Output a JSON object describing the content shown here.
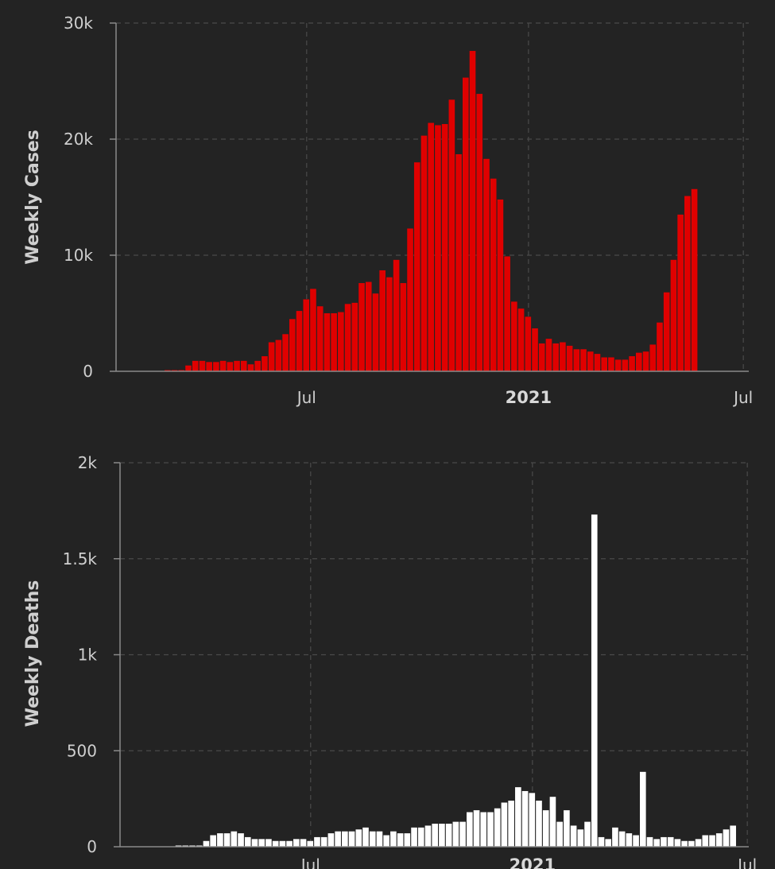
{
  "chart_data": [
    {
      "type": "bar",
      "ylabel": "Weekly Cases",
      "ylim": [
        0,
        30000
      ],
      "yticks": [
        "0",
        "10k",
        "20k",
        "30k"
      ],
      "ytick_values": [
        0,
        10000,
        20000,
        30000
      ],
      "xticks": [
        {
          "label": "Jul",
          "week_index": 27,
          "bold": false
        },
        {
          "label": "2021",
          "week_index": 59,
          "bold": true
        },
        {
          "label": "Jul",
          "week_index": 90,
          "bold": false
        }
      ],
      "grid": true,
      "bar_color": "#e00000",
      "x_unit": "weeks since first report",
      "values": [
        0,
        0,
        0,
        0,
        0,
        0,
        0,
        50,
        80,
        100,
        500,
        900,
        900,
        800,
        800,
        900,
        800,
        900,
        900,
        600,
        900,
        1300,
        2500,
        2700,
        3200,
        4500,
        5200,
        6200,
        7100,
        5600,
        5000,
        5000,
        5100,
        5800,
        5900,
        7600,
        7700,
        6700,
        8700,
        8100,
        9600,
        7600,
        12300,
        18000,
        20300,
        21400,
        21200,
        21300,
        23400,
        18700,
        25300,
        27600,
        23900,
        18300,
        16600,
        14800,
        9900,
        6000,
        5400,
        4700,
        3700,
        2400,
        2800,
        2400,
        2500,
        2200,
        1900,
        1900,
        1700,
        1500,
        1200,
        1200,
        1000,
        1000,
        1300,
        1600,
        1700,
        2300,
        4200,
        6800,
        9600,
        13500,
        15100,
        15700
      ]
    },
    {
      "type": "bar",
      "ylabel": "Weekly Deaths",
      "ylim": [
        0,
        2000
      ],
      "yticks": [
        "0",
        "500",
        "1k",
        "1.5k",
        "2k"
      ],
      "ytick_values": [
        0,
        500,
        1000,
        1500,
        2000
      ],
      "xticks": [
        {
          "label": "Jul",
          "week_index": 27,
          "bold": false
        },
        {
          "label": "2021",
          "week_index": 59,
          "bold": true
        },
        {
          "label": "Jul",
          "week_index": 90,
          "bold": false
        }
      ],
      "grid": true,
      "bar_color": "#ffffff",
      "x_unit": "weeks since first report",
      "values": [
        0,
        0,
        0,
        0,
        0,
        0,
        0,
        0,
        5,
        5,
        5,
        5,
        30,
        60,
        70,
        70,
        80,
        70,
        50,
        40,
        40,
        40,
        30,
        30,
        30,
        40,
        40,
        30,
        50,
        50,
        70,
        80,
        80,
        80,
        90,
        100,
        80,
        80,
        60,
        80,
        70,
        70,
        100,
        100,
        110,
        120,
        120,
        120,
        130,
        130,
        180,
        190,
        180,
        180,
        200,
        230,
        240,
        310,
        290,
        280,
        240,
        190,
        260,
        130,
        190,
        110,
        90,
        130,
        1730,
        50,
        40,
        100,
        80,
        70,
        60,
        390,
        50,
        40,
        50,
        50,
        40,
        30,
        30,
        40,
        60,
        60,
        70,
        90,
        110
      ]
    }
  ]
}
